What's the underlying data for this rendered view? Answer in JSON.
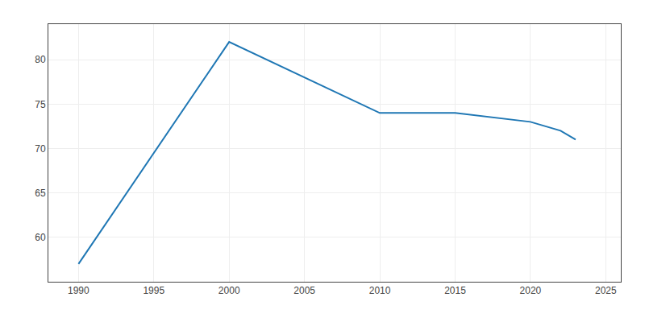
{
  "chart_data": {
    "type": "line",
    "x": [
      1990,
      2000,
      2010,
      2015,
      2020,
      2022,
      2023
    ],
    "values": [
      57,
      82,
      74,
      74,
      73,
      72,
      71
    ],
    "xlim": [
      1988,
      2026
    ],
    "ylim": [
      55,
      84
    ],
    "xticks": [
      1990,
      1995,
      2000,
      2005,
      2010,
      2015,
      2020,
      2025
    ],
    "yticks": [
      60,
      65,
      70,
      75,
      80
    ],
    "grid": true
  }
}
